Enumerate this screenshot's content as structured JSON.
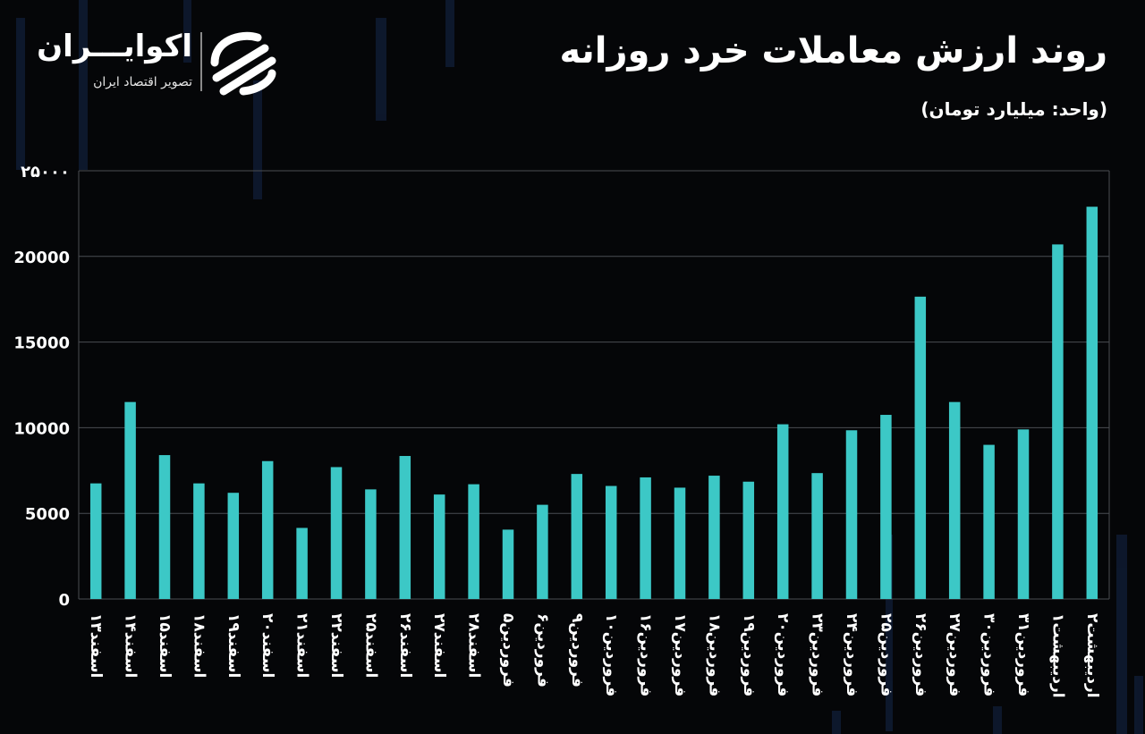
{
  "header": {
    "title": "روند ارزش معاملات خرد روزانه",
    "unit": "(واحد: میلیارد تومان)"
  },
  "logo": {
    "name": "اکوایـــران",
    "tagline": "تصویر اقتصاد ایران"
  },
  "colors": {
    "background": "#050608",
    "bar": "#3cc8c6",
    "grid": "#4a4d52",
    "text": "#ffffff"
  },
  "chart_data": {
    "type": "bar",
    "categories": [
      "اسفند۱۳",
      "اسفند۱۴",
      "اسفند۱۵",
      "اسفند۱۸",
      "اسفند۱۹",
      "اسفند۲۰",
      "اسفند۲۱",
      "اسفند۲۲",
      "اسفند۲۵",
      "اسفند۲۶",
      "اسفند۲۷",
      "اسفند۲۸",
      "فروردین۵",
      "فروردین۶",
      "فروردین۹",
      "فروردین۱۰",
      "فروردین۱۶",
      "فروردین۱۷",
      "فروردین۱۸",
      "فروردین۱۹",
      "فروردین۲۰",
      "فروردین۲۳",
      "فروردین۲۴",
      "فروردین۲۵",
      "فروردین۲۶",
      "فروردین۲۷",
      "فروردین۳۰",
      "فروردین۳۱",
      "اردیبهشت۱",
      "اردیبهشت۲"
    ],
    "values": [
      6750,
      11500,
      8400,
      6750,
      6200,
      8050,
      4150,
      7700,
      6400,
      8350,
      6100,
      6700,
      4050,
      5500,
      7300,
      6600,
      7100,
      6500,
      7200,
      6850,
      10200,
      7350,
      9850,
      10750,
      17650,
      11500,
      9000,
      9900,
      20700,
      22900
    ],
    "yticks": [
      "۲۵۰۰۰",
      "20000",
      "15000",
      "10000",
      "5000",
      "0"
    ],
    "ylim": [
      0,
      25000
    ],
    "grid": true
  }
}
